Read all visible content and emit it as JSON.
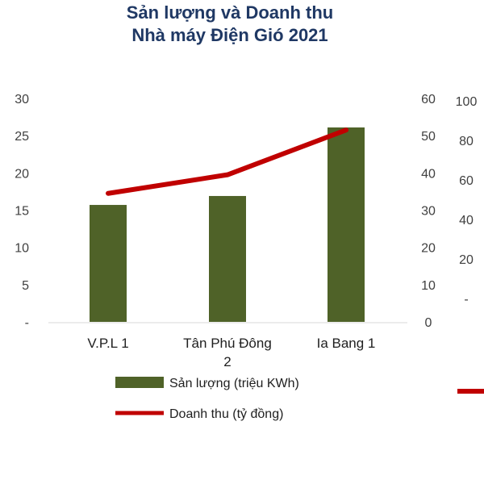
{
  "title": {
    "line1": "Sản lượng và Doanh thu",
    "line2": "Nhà máy Điện Gió 2021"
  },
  "colors": {
    "bar": "#4f6228",
    "line": "#c00000",
    "title": "#1f3864"
  },
  "chart_data": {
    "type": "bar+line",
    "categories": [
      "V.P.L 1",
      "Tân Phú Đông 2",
      "Ia Bang 1"
    ],
    "category_label_lines": [
      [
        "V.P.L 1"
      ],
      [
        "Tân Phú Đông",
        "2"
      ],
      [
        "Ia Bang 1"
      ]
    ],
    "series": [
      {
        "name": "Sản lượng (triệu KWh)",
        "type": "bar",
        "axis": "left",
        "values": [
          15.7,
          16.9,
          26.1
        ]
      },
      {
        "name": "Doanh thu (tỷ đồng)",
        "type": "line",
        "axis": "right",
        "values": [
          34.5,
          39.5,
          51.5
        ]
      }
    ],
    "y_left": {
      "ticks": [
        "-",
        "5",
        "10",
        "15",
        "20",
        "25",
        "30"
      ],
      "ylim": [
        0,
        30
      ]
    },
    "y_right": {
      "ticks": [
        "0",
        "10",
        "20",
        "30",
        "40",
        "50",
        "60"
      ],
      "ylim": [
        0,
        60
      ]
    },
    "y_right2": {
      "ticks": [
        "-",
        "20",
        "40",
        "60",
        "80",
        "100"
      ]
    },
    "legend_position": "bottom",
    "grid": false
  }
}
